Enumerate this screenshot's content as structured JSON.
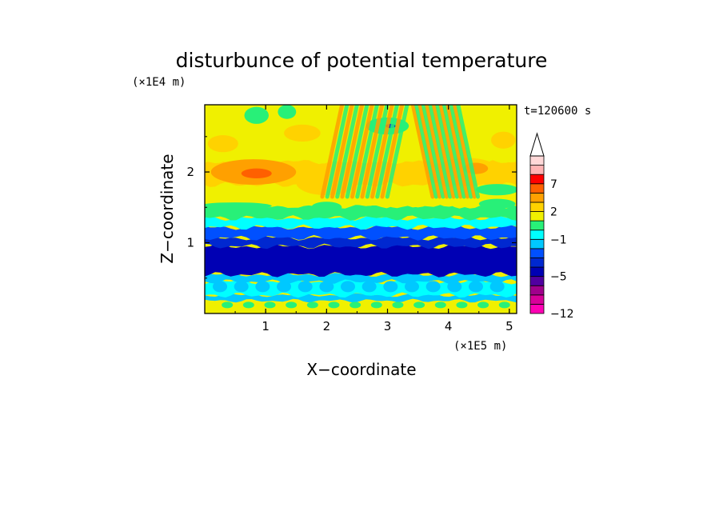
{
  "chart_data": {
    "type": "heatmap",
    "title": "disturbunce of potential temperature",
    "xlabel": "X−coordinate",
    "ylabel": "Z−coordinate",
    "x_unit": "(×1E5 m)",
    "y_unit": "(×1E4 m)",
    "time_label": "t=120600 s",
    "xlim": [
      0,
      5.12
    ],
    "ylim": [
      0,
      2.95
    ],
    "x_ticks": [
      1,
      2,
      3,
      4,
      5
    ],
    "y_ticks": [
      1,
      2
    ],
    "x_tick_labels": [
      "1",
      "2",
      "3",
      "4",
      "5"
    ],
    "y_tick_labels": [
      "1",
      "2"
    ],
    "colorbar": {
      "levels": [
        -12,
        -11,
        -9,
        -7,
        -5,
        -4,
        -3,
        -2,
        -1,
        0,
        1,
        2,
        3,
        5,
        7,
        9,
        11
      ],
      "labeled_levels": [
        7,
        2,
        -1,
        -5,
        -12
      ],
      "labels": [
        "7",
        "2",
        "−1",
        "−5",
        "−12"
      ],
      "extend": "max",
      "colors": [
        "#ff00b4",
        "#d8009a",
        "#a0008c",
        "#5000a0",
        "#0000b4",
        "#0028d0",
        "#0050ff",
        "#00c8ff",
        "#00ffff",
        "#28f078",
        "#f0f000",
        "#ffd200",
        "#ffa000",
        "#ff6000",
        "#ff0000",
        "#ffb4b4",
        "#ffd8d8"
      ],
      "extend_color": "#ffffff"
    },
    "bands": [
      {
        "z_bottom": 0.0,
        "z_top": 0.08,
        "level": 1
      },
      {
        "z_bottom": 0.08,
        "z_top": 0.18,
        "level": 1
      },
      {
        "z_bottom": 0.18,
        "z_top": 0.26,
        "level": -2
      },
      {
        "z_bottom": 0.26,
        "z_top": 0.45,
        "level": -1
      },
      {
        "z_bottom": 0.45,
        "z_top": 0.55,
        "level": -2
      },
      {
        "z_bottom": 0.55,
        "z_top": 0.95,
        "level": -5
      },
      {
        "z_bottom": 0.95,
        "z_top": 1.07,
        "level": -4
      },
      {
        "z_bottom": 1.07,
        "z_top": 1.22,
        "level": -3
      },
      {
        "z_bottom": 1.22,
        "z_top": 1.35,
        "level": -1
      },
      {
        "z_bottom": 1.35,
        "z_top": 1.52,
        "level": 0
      },
      {
        "z_bottom": 1.52,
        "z_top": 1.82,
        "level": 1
      },
      {
        "z_bottom": 1.82,
        "z_top": 2.15,
        "level": 2
      },
      {
        "z_bottom": 2.15,
        "z_top": 2.45,
        "level": 1
      },
      {
        "z_bottom": 2.45,
        "z_top": 2.75,
        "level": 1
      },
      {
        "z_bottom": 2.75,
        "z_top": 2.95,
        "level": 1
      }
    ],
    "features": [
      {
        "x": 0.8,
        "z": 2.0,
        "rx": 0.7,
        "rz": 0.18,
        "level": 3
      },
      {
        "x": 0.85,
        "z": 1.98,
        "rx": 0.25,
        "rz": 0.07,
        "level": 5
      },
      {
        "x": 2.0,
        "z": 1.85,
        "rx": 0.5,
        "rz": 0.18,
        "level": 2
      },
      {
        "x": 4.3,
        "z": 2.0,
        "rx": 0.55,
        "rz": 0.2,
        "level": 2
      },
      {
        "x": 4.45,
        "z": 2.05,
        "rx": 0.2,
        "rz": 0.08,
        "level": 3
      },
      {
        "x": 0.3,
        "z": 2.4,
        "rx": 0.25,
        "rz": 0.12,
        "level": 2
      },
      {
        "x": 1.6,
        "z": 2.55,
        "rx": 0.3,
        "rz": 0.12,
        "level": 2
      },
      {
        "x": 4.9,
        "z": 2.45,
        "rx": 0.2,
        "rz": 0.12,
        "level": 2
      },
      {
        "x": 0.85,
        "z": 2.8,
        "rx": 0.2,
        "rz": 0.12,
        "level": 0
      },
      {
        "x": 1.35,
        "z": 2.85,
        "rx": 0.15,
        "rz": 0.1,
        "level": 0
      },
      {
        "x": 3.0,
        "z": 2.65,
        "rx": 0.35,
        "rz": 0.12,
        "level": 0
      },
      {
        "x": 3.05,
        "z": 2.65,
        "rx": 0.08,
        "rz": 0.03,
        "level": -4
      },
      {
        "x": 4.8,
        "z": 1.75,
        "rx": 0.35,
        "rz": 0.08,
        "level": 0
      },
      {
        "x": 0.5,
        "z": 1.52,
        "rx": 0.6,
        "rz": 0.05,
        "level": 0
      },
      {
        "x": 2.0,
        "z": 1.5,
        "rx": 0.25,
        "rz": 0.08,
        "level": 0
      },
      {
        "x": 4.8,
        "z": 1.55,
        "rx": 0.3,
        "rz": 0.07,
        "level": 0
      }
    ],
    "wave_packets": [
      {
        "x_min": 2.05,
        "x_max": 3.2,
        "z_min": 1.65,
        "z_max": 2.95,
        "tilt": -0.9
      },
      {
        "x_min": 3.55,
        "x_max": 4.35,
        "z_min": 1.65,
        "z_max": 2.95,
        "tilt": 0.9
      }
    ]
  }
}
